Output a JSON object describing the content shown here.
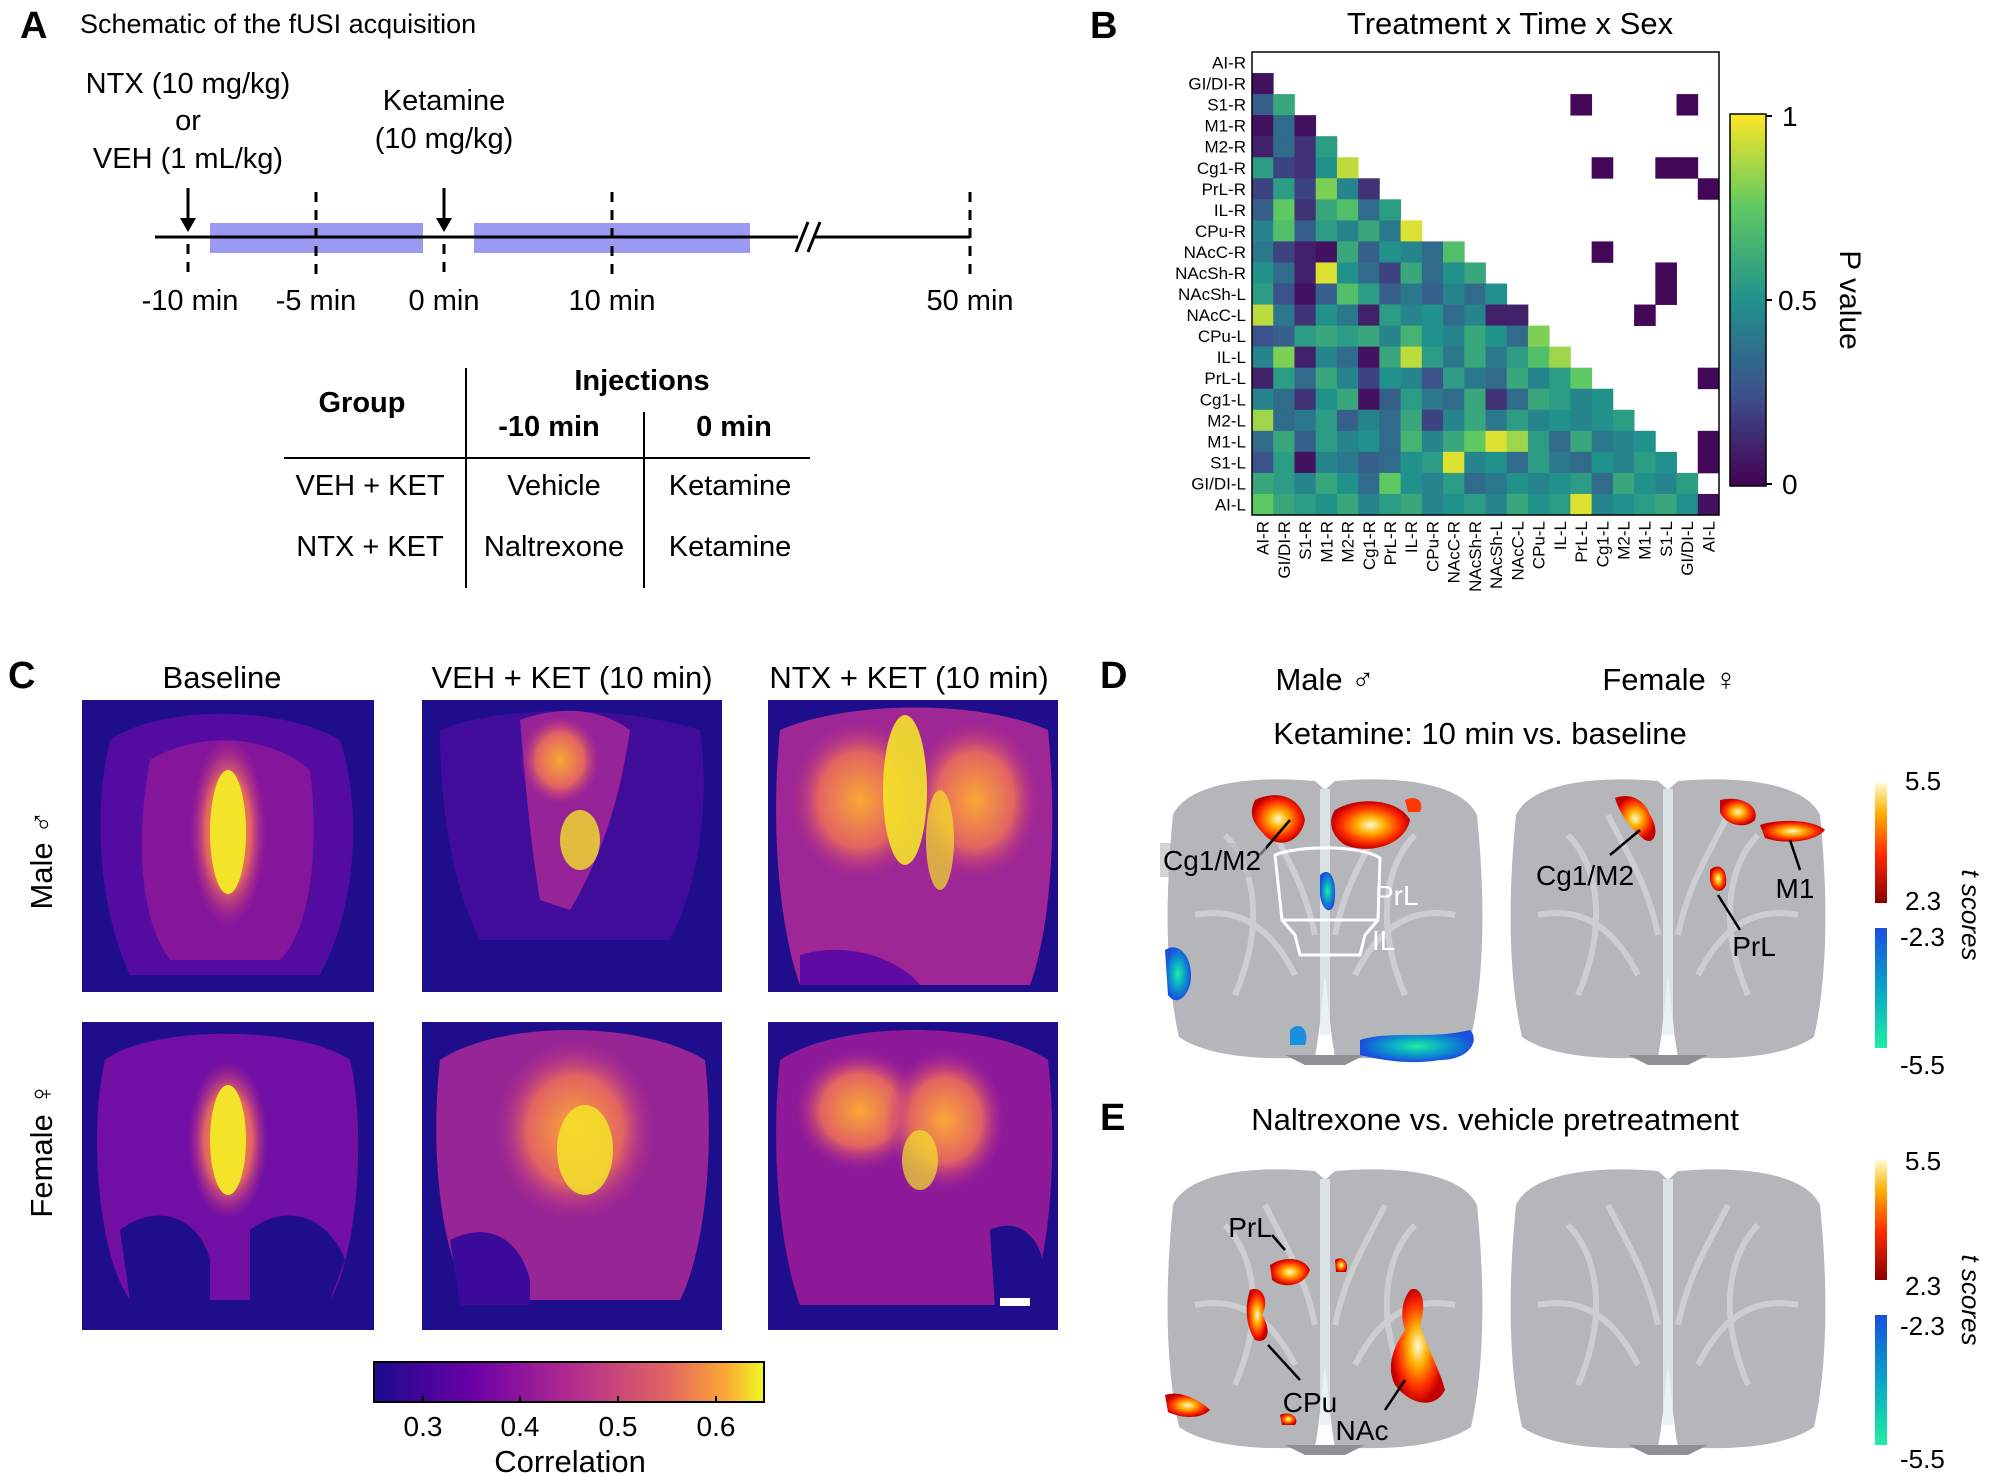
{
  "panel_letters": {
    "a": "A",
    "b": "B",
    "c": "C",
    "d": "D",
    "e": "E"
  },
  "panel_a": {
    "title": "Schematic of the fUSI acquisition",
    "ntx_line1": "NTX (10 mg/kg)",
    "ntx_line2": "or",
    "ntx_line3": "VEH (1 mL/kg)",
    "ket_line1": "Ketamine",
    "ket_line2": "(10 mg/kg)",
    "timepoints": [
      "-10 min",
      "-5 min",
      "0 min",
      "10 min",
      "50 min"
    ],
    "table": {
      "group_header": "Group",
      "injections_header": "Injections",
      "col1": "-10 min",
      "col2": "0 min",
      "rows": [
        {
          "group": "VEH + KET",
          "t1": "Vehicle",
          "t2": "Ketamine"
        },
        {
          "group": "NTX + KET",
          "t1": "Naltrexone",
          "t2": "Ketamine"
        }
      ]
    }
  },
  "panel_b": {
    "title": "Treatment x Time x Sex",
    "colorbar_label": "P value",
    "colorbar_ticks": [
      "1",
      "0.5",
      "0"
    ]
  },
  "chart_data": {
    "type": "heatmap",
    "title": "Treatment x Time x Sex",
    "row_labels": [
      "AI-R",
      "GI/DI-R",
      "S1-R",
      "M1-R",
      "M2-R",
      "Cg1-R",
      "PrL-R",
      "IL-R",
      "CPu-R",
      "NAcC-R",
      "NAcSh-R",
      "NAcSh-L",
      "NAcC-L",
      "CPu-L",
      "IL-L",
      "PrL-L",
      "Cg1-L",
      "M2-L",
      "M1-L",
      "S1-L",
      "GI/DI-L",
      "AI-L"
    ],
    "col_labels": [
      "AI-R",
      "GI/DI-R",
      "S1-R",
      "M1-R",
      "M2-R",
      "Cg1-R",
      "PrL-R",
      "IL-R",
      "CPu-R",
      "NAcC-R",
      "NAcSh-R",
      "NAcSh-L",
      "NAcC-L",
      "CPu-L",
      "IL-L",
      "PrL-L",
      "Cg1-L",
      "M2-L",
      "M1-L",
      "S1-L",
      "GI/DI-L",
      "AI-L"
    ],
    "colorbar": {
      "label": "P value",
      "range": [
        0,
        1
      ]
    },
    "lower_triangle_values": [
      [],
      [
        0.05
      ],
      [
        0.3,
        0.6
      ],
      [
        0.05,
        0.35,
        0.05
      ],
      [
        0.1,
        0.35,
        0.15,
        0.55
      ],
      [
        0.55,
        0.2,
        0.15,
        0.5,
        0.9
      ],
      [
        0.2,
        0.55,
        0.2,
        0.8,
        0.45,
        0.15
      ],
      [
        0.3,
        0.75,
        0.15,
        0.6,
        0.7,
        0.35,
        0.55
      ],
      [
        0.45,
        0.7,
        0.3,
        0.55,
        0.45,
        0.6,
        0.4,
        0.95
      ],
      [
        0.4,
        0.2,
        0.1,
        0.05,
        0.6,
        0.3,
        0.5,
        0.45,
        0.35,
        0.7
      ],
      [
        0.5,
        0.35,
        0.1,
        0.95,
        0.5,
        0.35,
        0.2,
        0.6,
        0.35,
        0.5,
        0.6
      ],
      [
        0.55,
        0.25,
        0.05,
        0.3,
        0.7,
        0.55,
        0.3,
        0.4,
        0.3,
        0.45,
        0.35,
        0.5
      ],
      [
        0.9,
        0.4,
        0.15,
        0.5,
        0.4,
        0.1,
        0.55,
        0.45,
        0.5,
        0.35,
        0.45,
        0.1,
        0.1
      ],
      [
        0.25,
        0.3,
        0.55,
        0.6,
        0.55,
        0.6,
        0.45,
        0.65,
        0.5,
        0.45,
        0.6,
        0.5,
        0.35,
        0.8
      ],
      [
        0.45,
        0.8,
        0.1,
        0.45,
        0.35,
        0.05,
        0.6,
        0.9,
        0.55,
        0.4,
        0.6,
        0.4,
        0.55,
        0.7,
        0.85
      ],
      [
        0.1,
        0.55,
        0.35,
        0.6,
        0.45,
        0.2,
        0.5,
        0.45,
        0.25,
        0.55,
        0.4,
        0.35,
        0.6,
        0.45,
        0.55,
        0.75
      ],
      [
        0.45,
        0.35,
        0.15,
        0.5,
        0.6,
        0.05,
        0.3,
        0.55,
        0.4,
        0.35,
        0.6,
        0.15,
        0.35,
        0.6,
        0.55,
        0.45,
        0.5
      ],
      [
        0.85,
        0.35,
        0.4,
        0.55,
        0.3,
        0.45,
        0.35,
        0.6,
        0.2,
        0.45,
        0.6,
        0.4,
        0.55,
        0.45,
        0.5,
        0.45,
        0.5,
        0.55
      ],
      [
        0.35,
        0.6,
        0.3,
        0.55,
        0.45,
        0.5,
        0.35,
        0.65,
        0.45,
        0.6,
        0.75,
        0.95,
        0.85,
        0.55,
        0.35,
        0.6,
        0.4,
        0.45,
        0.5
      ],
      [
        0.25,
        0.55,
        0.05,
        0.45,
        0.4,
        0.3,
        0.35,
        0.5,
        0.55,
        0.95,
        0.45,
        0.5,
        0.35,
        0.55,
        0.4,
        0.35,
        0.5,
        0.45,
        0.55,
        0.5
      ],
      [
        0.6,
        0.55,
        0.45,
        0.6,
        0.5,
        0.35,
        0.75,
        0.5,
        0.45,
        0.55,
        0.35,
        0.4,
        0.5,
        0.45,
        0.5,
        0.55,
        0.35,
        0.6,
        0.5,
        0.45,
        0.55
      ],
      [
        0.75,
        0.6,
        0.55,
        0.5,
        0.6,
        0.45,
        0.55,
        0.6,
        0.45,
        0.5,
        0.55,
        0.45,
        0.6,
        0.5,
        0.55,
        0.95,
        0.45,
        0.5,
        0.55,
        0.6,
        0.5,
        0.05
      ]
    ],
    "upper_triangle_significant_cells": [
      {
        "row": "S1-R",
        "col": "PrL-L"
      },
      {
        "row": "S1-R",
        "col": "GI/DI-L"
      },
      {
        "row": "Cg1-R",
        "col": "Cg1-L"
      },
      {
        "row": "Cg1-R",
        "col": "S1-L"
      },
      {
        "row": "Cg1-R",
        "col": "GI/DI-L"
      },
      {
        "row": "PrL-R",
        "col": "AI-L"
      },
      {
        "row": "NAcC-R",
        "col": "Cg1-L"
      },
      {
        "row": "NAcSh-R",
        "col": "S1-L"
      },
      {
        "row": "NAcSh-L",
        "col": "S1-L"
      },
      {
        "row": "NAcC-L",
        "col": "M1-L"
      },
      {
        "row": "PrL-L",
        "col": "AI-L"
      },
      {
        "row": "M1-L",
        "col": "AI-L"
      },
      {
        "row": "S1-L",
        "col": "AI-L"
      }
    ],
    "upper_triangle_significant_value": 0.02
  },
  "panel_c": {
    "col_titles": [
      "Baseline",
      "VEH + KET (10 min)",
      "NTX + KET (10 min)"
    ],
    "row_labels": [
      "Male ♂",
      "Female ♀"
    ],
    "colorbar_label": "Correlation",
    "colorbar_ticks": [
      "0.3",
      "0.4",
      "0.5",
      "0.6"
    ],
    "colorbar_range": [
      0.25,
      0.65
    ]
  },
  "panel_d": {
    "male_title": "Male ♂",
    "female_title": "Female ♀",
    "subtitle": "Ketamine: 10 min vs. baseline",
    "male_labels": {
      "cg1m2": "Cg1/M2",
      "prl": "PrL",
      "il": "IL"
    },
    "female_labels": {
      "cg1m2": "Cg1/M2",
      "m1": "M1",
      "prl": "PrL"
    }
  },
  "panel_e": {
    "subtitle": "Naltrexone vs. vehicle pretreatment",
    "labels": {
      "prl": "PrL",
      "cpu": "CPu",
      "nac": "NAc"
    }
  },
  "tscore_colorbar": {
    "label": "t scores",
    "ticks_pos_top": "5.5",
    "ticks_pos_bottom": "2.3",
    "ticks_neg_top": "-2.3",
    "ticks_neg_bottom": "-5.5"
  },
  "colors": {
    "timeline_bar": "#9999f2",
    "viridis_low": "#440154",
    "viridis_high": "#fde725",
    "brain_gray": "#b3b5b8",
    "activation_hot": "#ff3a00",
    "activation_cool": "#1f6fe0"
  }
}
